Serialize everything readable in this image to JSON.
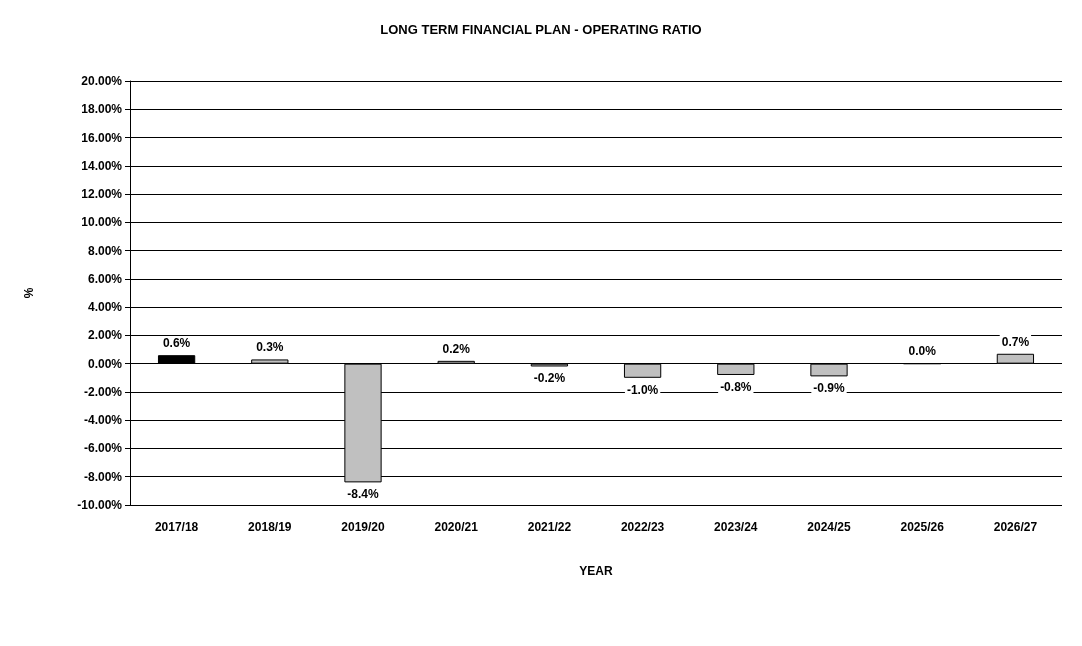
{
  "chart_data": {
    "type": "bar",
    "title": "LONG TERM FINANCIAL PLAN - OPERATING RATIO",
    "xlabel": "YEAR",
    "ylabel": "%",
    "categories": [
      "2017/18",
      "2018/19",
      "2019/20",
      "2020/21",
      "2021/22",
      "2022/23",
      "2023/24",
      "2024/25",
      "2025/26",
      "2026/27"
    ],
    "values": [
      0.6,
      0.3,
      -8.4,
      0.2,
      -0.2,
      -1.0,
      -0.8,
      -0.9,
      0.0,
      0.7
    ],
    "value_labels": [
      "0.6%",
      "0.3%",
      "-8.4%",
      "0.2%",
      "-0.2%",
      "-1.0%",
      "-0.8%",
      "-0.9%",
      "0.0%",
      "0.7%"
    ],
    "colors": [
      "#000000",
      "#c0c0c0",
      "#c0c0c0",
      "#c0c0c0",
      "#c0c0c0",
      "#c0c0c0",
      "#c0c0c0",
      "#c0c0c0",
      "#000000",
      "#c0c0c0"
    ],
    "ylim": [
      -10,
      20
    ],
    "yticks": [
      {
        "value": -10,
        "label": "-10.00%"
      },
      {
        "value": -8,
        "label": "-8.00%"
      },
      {
        "value": -6,
        "label": "-6.00%"
      },
      {
        "value": -4,
        "label": "-4.00%"
      },
      {
        "value": -2,
        "label": "-2.00%"
      },
      {
        "value": 0,
        "label": "0.00%"
      },
      {
        "value": 2,
        "label": "2.00%"
      },
      {
        "value": 4,
        "label": "4.00%"
      },
      {
        "value": 6,
        "label": "6.00%"
      },
      {
        "value": 8,
        "label": "8.00%"
      },
      {
        "value": 10,
        "label": "10.00%"
      },
      {
        "value": 12,
        "label": "12.00%"
      },
      {
        "value": 14,
        "label": "14.00%"
      },
      {
        "value": 16,
        "label": "16.00%"
      },
      {
        "value": 18,
        "label": "18.00%"
      },
      {
        "value": 20,
        "label": "20.00%"
      }
    ],
    "grid": "y"
  }
}
